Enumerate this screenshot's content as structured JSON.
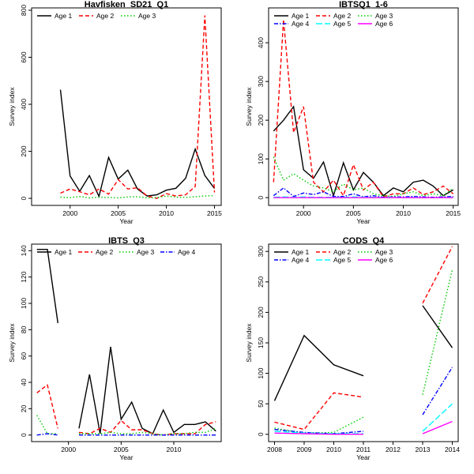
{
  "chart_data": [
    {
      "type": "line",
      "title": "Havfisken_SD21_Q1",
      "xlabel": "Year",
      "ylabel": "Survey index",
      "xlim": [
        1996,
        2015.7
      ],
      "ylim": [
        -30,
        810
      ],
      "xticks": [
        2000,
        2005,
        2010,
        2015
      ],
      "yticks": [
        0,
        200,
        400,
        600,
        800
      ],
      "legend": "top",
      "series": [
        {
          "name": "Age 1",
          "color": "#000000",
          "dash": "solid",
          "x": [
            1999,
            2000,
            2001,
            2002,
            2003,
            2004,
            2005,
            2006,
            2007,
            2008,
            2009,
            2010,
            2011,
            2012,
            2013,
            2014,
            2015
          ],
          "y": [
            462,
            95,
            30,
            97,
            8,
            174,
            82,
            120,
            40,
            10,
            15,
            35,
            43,
            85,
            210,
            97,
            42
          ]
        },
        {
          "name": "Age 2",
          "color": "#ff0000",
          "dash": "dashed",
          "x": [
            1999,
            2000,
            2001,
            2002,
            2003,
            2004,
            2005,
            2006,
            2007,
            2008,
            2009,
            2010,
            2011,
            2012,
            2013,
            2014,
            2015
          ],
          "y": [
            22,
            40,
            28,
            15,
            40,
            18,
            80,
            40,
            45,
            10,
            0,
            20,
            10,
            15,
            50,
            778,
            25
          ]
        },
        {
          "name": "Age 3",
          "color": "#00cc00",
          "dash": "dotted",
          "x": [
            1999,
            2000,
            2001,
            2002,
            2003,
            2004,
            2005,
            2006,
            2007,
            2008,
            2009,
            2010,
            2011,
            2012,
            2013,
            2014,
            2015
          ],
          "y": [
            5,
            3,
            8,
            2,
            5,
            4,
            2,
            6,
            7,
            2,
            3,
            10,
            5,
            4,
            7,
            10,
            12
          ]
        }
      ]
    },
    {
      "type": "line",
      "title": "IBTSQ1_1-6",
      "xlabel": "Year",
      "ylabel": "Survey index",
      "xlim": [
        1996.5,
        2015.5
      ],
      "ylim": [
        -20,
        490
      ],
      "xticks": [
        2000,
        2005,
        2010,
        2015
      ],
      "yticks": [
        0,
        100,
        200,
        300,
        400
      ],
      "legend": "top",
      "series": [
        {
          "name": "Age 1",
          "color": "#000000",
          "dash": "solid",
          "x": [
            1997,
            1998,
            1999,
            2000,
            2001,
            2002,
            2003,
            2004,
            2005,
            2006,
            2007,
            2008,
            2009,
            2010,
            2011,
            2012,
            2013,
            2014,
            2015
          ],
          "y": [
            172,
            200,
            235,
            72,
            50,
            92,
            5,
            90,
            20,
            65,
            40,
            5,
            25,
            15,
            40,
            45,
            30,
            5,
            20
          ]
        },
        {
          "name": "Age 2",
          "color": "#ff0000",
          "dash": "dashed",
          "x": [
            1997,
            1998,
            1999,
            2000,
            2001,
            2002,
            2003,
            2004,
            2005,
            2006,
            2007,
            2008,
            2009,
            2010,
            2011,
            2012,
            2013,
            2014,
            2015
          ],
          "y": [
            40,
            460,
            168,
            235,
            40,
            15,
            45,
            5,
            85,
            20,
            40,
            2,
            10,
            10,
            25,
            8,
            15,
            30,
            10
          ]
        },
        {
          "name": "Age 3",
          "color": "#00cc00",
          "dash": "dotted",
          "x": [
            1997,
            1998,
            1999,
            2000,
            2001,
            2002,
            2003,
            2004,
            2005,
            2006,
            2007,
            2008,
            2009,
            2010,
            2011,
            2012,
            2013,
            2014,
            2015
          ],
          "y": [
            105,
            45,
            62,
            45,
            30,
            25,
            15,
            35,
            20,
            25,
            10,
            5,
            3,
            10,
            15,
            5,
            10,
            5,
            25
          ]
        },
        {
          "name": "Age 4",
          "color": "#0000ff",
          "dash": "dashdot",
          "x": [
            1997,
            1998,
            1999,
            2000,
            2001,
            2002,
            2003,
            2004,
            2005,
            2006,
            2007,
            2008,
            2009,
            2010,
            2011,
            2012,
            2013,
            2014,
            2015
          ],
          "y": [
            5,
            25,
            3,
            12,
            8,
            15,
            3,
            3,
            10,
            2,
            5,
            1,
            2,
            2,
            3,
            2,
            1,
            2,
            3
          ]
        },
        {
          "name": "Age 5",
          "color": "#00ffff",
          "dash": "longdash",
          "x": [
            1997,
            1998,
            1999,
            2000,
            2001,
            2002,
            2003,
            2004,
            2005,
            2006,
            2007,
            2008,
            2009,
            2010,
            2011,
            2012,
            2013,
            2014,
            2015
          ],
          "y": [
            1,
            2,
            1,
            2,
            1,
            1,
            1,
            1,
            2,
            1,
            1,
            0,
            1,
            0,
            1,
            0,
            0,
            0,
            1
          ]
        },
        {
          "name": "Age 6",
          "color": "#ff00ff",
          "dash": "solid",
          "x": [
            1997,
            1998,
            1999,
            2000,
            2001,
            2002,
            2003,
            2004,
            2005,
            2006,
            2007,
            2008,
            2009,
            2010,
            2011,
            2012,
            2013,
            2014,
            2015
          ],
          "y": [
            0,
            0,
            0,
            0,
            0,
            0,
            0,
            0,
            0,
            0,
            0,
            0,
            0,
            0,
            0,
            0,
            0,
            0,
            0
          ]
        }
      ]
    },
    {
      "type": "line",
      "title": "IBTS_Q3",
      "xlabel": "Year",
      "ylabel": "Survey index",
      "xlim": [
        1996.5,
        2014.5
      ],
      "ylim": [
        -5,
        145
      ],
      "xticks": [
        2000,
        2005,
        2010
      ],
      "yticks": [
        0,
        20,
        40,
        60,
        80,
        100,
        120,
        140
      ],
      "legend": "top",
      "series": [
        {
          "name": "Age 1",
          "color": "#000000",
          "dash": "solid",
          "x": [
            1997,
            1998,
            1999,
            null,
            2001,
            2002,
            2003,
            2004,
            2005,
            2006,
            2007,
            2008,
            2009,
            2010,
            2011,
            2012,
            2013,
            2014
          ],
          "y": [
            141,
            141,
            85,
            null,
            5,
            46,
            1,
            67,
            12,
            25,
            5,
            1,
            19,
            2,
            8,
            8,
            10,
            3
          ]
        },
        {
          "name": "Age 2",
          "color": "#ff0000",
          "dash": "dashed",
          "x": [
            1997,
            1998,
            1999,
            null,
            2001,
            2002,
            2003,
            2004,
            2005,
            2006,
            2007,
            2008,
            2009,
            2010,
            2011,
            2012,
            2013,
            2014
          ],
          "y": [
            32,
            38,
            5,
            null,
            2,
            1,
            5,
            2,
            11,
            4,
            4,
            1,
            0,
            1,
            1,
            1,
            8,
            10
          ]
        },
        {
          "name": "Age 3",
          "color": "#00cc00",
          "dash": "dotted",
          "x": [
            1997,
            1998,
            1999,
            null,
            2001,
            2002,
            2003,
            2004,
            2005,
            2006,
            2007,
            2008,
            2009,
            2010,
            2011,
            2012,
            2013,
            2014
          ],
          "y": [
            15,
            1,
            1,
            null,
            1,
            1,
            1,
            2,
            1,
            1,
            2,
            1,
            0,
            1,
            1,
            2,
            2,
            5
          ]
        },
        {
          "name": "Age 4",
          "color": "#0000ff",
          "dash": "dashdot",
          "x": [
            1997,
            1998,
            1999,
            null,
            2001,
            2002,
            2003,
            2004,
            2005,
            2006,
            2007,
            2008,
            2009,
            2010,
            2011,
            2012,
            2013,
            2014
          ],
          "y": [
            0,
            1,
            0,
            null,
            0,
            0,
            0,
            0,
            0,
            0,
            0,
            0,
            0,
            0,
            0,
            0,
            0,
            0
          ]
        }
      ]
    },
    {
      "type": "line",
      "title": "CODS_Q4",
      "xlabel": "Year",
      "ylabel": "Survey index",
      "xlim": [
        2007.8,
        2014.2
      ],
      "ylim": [
        -12,
        312
      ],
      "xticks": [
        2008,
        2009,
        2010,
        2011,
        2012,
        2013,
        2014
      ],
      "yticks": [
        0,
        50,
        100,
        150,
        200,
        250,
        300
      ],
      "legend": "top",
      "series": [
        {
          "name": "Age 1",
          "color": "#000000",
          "dash": "solid",
          "x": [
            2008,
            2009,
            2010,
            2011,
            null,
            2013,
            2014
          ],
          "y": [
            55,
            162,
            114,
            96,
            null,
            211,
            142
          ]
        },
        {
          "name": "Age 2",
          "color": "#ff0000",
          "dash": "dashed",
          "x": [
            2008,
            2009,
            2010,
            2011,
            null,
            2013,
            2014
          ],
          "y": [
            20,
            8,
            68,
            61,
            null,
            215,
            308
          ]
        },
        {
          "name": "Age 3",
          "color": "#00cc00",
          "dash": "dotted",
          "x": [
            2008,
            2009,
            2010,
            2011,
            null,
            2013,
            2014
          ],
          "y": [
            10,
            2,
            3,
            28,
            null,
            65,
            270
          ]
        },
        {
          "name": "Age 4",
          "color": "#0000ff",
          "dash": "dashdot",
          "x": [
            2008,
            2009,
            2010,
            2011,
            null,
            2013,
            2014
          ],
          "y": [
            8,
            3,
            1,
            5,
            null,
            32,
            110
          ]
        },
        {
          "name": "Age 5",
          "color": "#00ffff",
          "dash": "longdash",
          "x": [
            2008,
            2009,
            2010,
            2011,
            null,
            2013,
            2014
          ],
          "y": [
            5,
            2,
            1,
            1,
            null,
            5,
            50
          ]
        },
        {
          "name": "Age 6",
          "color": "#ff00ff",
          "dash": "solid",
          "x": [
            2008,
            2009,
            2010,
            2011,
            null,
            2013,
            2014
          ],
          "y": [
            2,
            1,
            0,
            0,
            null,
            1,
            21
          ]
        }
      ]
    }
  ]
}
